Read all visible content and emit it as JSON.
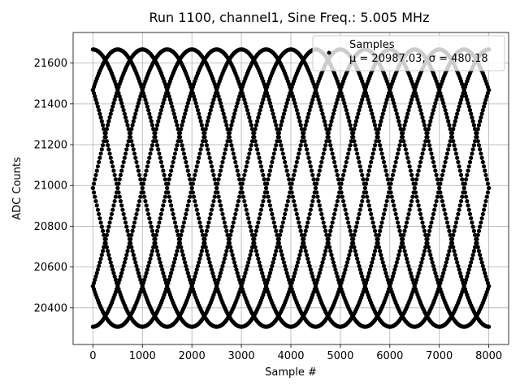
{
  "chart_data": {
    "type": "scatter",
    "title": "Run 1100, channel1, Sine Freq.: 5.005 MHz",
    "xlabel": "Sample #",
    "ylabel": "ADC Counts",
    "xlim": [
      -400,
      8400
    ],
    "ylim": [
      20220,
      21750
    ],
    "xticks": [
      0,
      1000,
      2000,
      3000,
      4000,
      5000,
      6000,
      7000,
      8000
    ],
    "yticks": [
      20400,
      20600,
      20800,
      21000,
      21200,
      21400,
      21600
    ],
    "grid": true,
    "legend": {
      "placement": "top-right",
      "entries": [
        {
          "label": "Samples",
          "stats": "μ = 20987.03, σ = 480.18"
        }
      ]
    },
    "series": [
      {
        "name": "Samples",
        "color": "#000000",
        "marker": "point",
        "model": {
          "mean": 20987.03,
          "amplitude": 680,
          "x_start": 0,
          "x_end": 8000,
          "envelope_period_samples": 4000,
          "phases_deg": [
            90,
            135,
            180,
            225,
            270,
            315,
            0,
            45
          ],
          "points_per_curve": 400
        }
      }
    ]
  }
}
